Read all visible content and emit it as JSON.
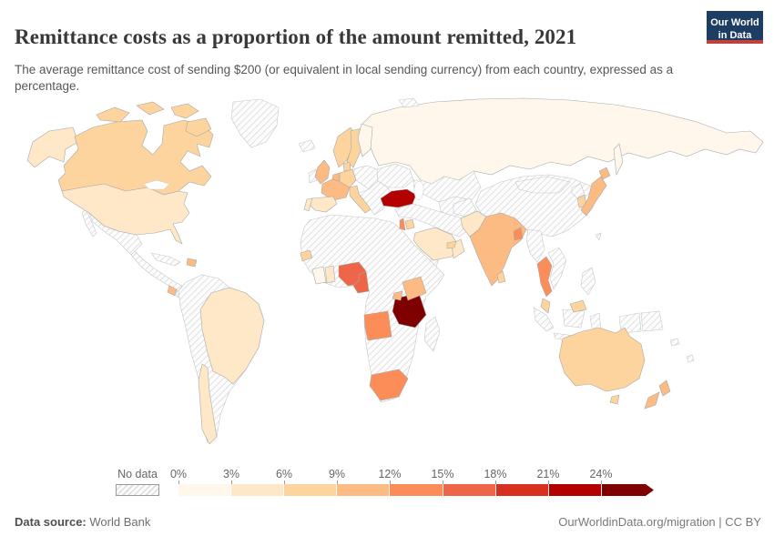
{
  "header": {
    "title": "Remittance costs as a proportion of the amount remitted, 2021",
    "subtitle": "The average remittance cost of sending $200 (or equivalent in local sending currency) from each country, expressed as a percentage.",
    "logo": {
      "line1": "Our World",
      "line2": "in Data",
      "bg_color": "#1d3d63",
      "accent_color": "#c0423e"
    }
  },
  "footer": {
    "source_label": "Data source:",
    "source_value": "World Bank",
    "attribution": "OurWorldinData.org/migration | CC BY"
  },
  "chart_data": {
    "type": "choropleth",
    "title": "Remittance costs as a proportion of the amount remitted, 2021",
    "unit": "share of amount remitted (%)",
    "year": "2021",
    "legend": {
      "no_data_label": "No data",
      "tick_labels": [
        "0%",
        "3%",
        "6%",
        "9%",
        "12%",
        "15%",
        "18%",
        "21%",
        "24%"
      ],
      "bin_colors": [
        "#fff7ec",
        "#fee8c8",
        "#fdd49e",
        "#fdbb84",
        "#fc8d59",
        "#ef6548",
        "#d7301f",
        "#b30000",
        "#7f0000"
      ],
      "bin_size_percent": 3,
      "open_ended_upper_arrow": true
    },
    "countries": {
      "russia": {
        "label": "Russia",
        "band": "0–3%",
        "color": "#fff7ec"
      },
      "finland": {
        "label": "Finland",
        "band": "0–3%",
        "color": "#fff7ec"
      },
      "cote-divoire": {
        "label": "Cote d'Ivoire",
        "band": "0–3%",
        "color": "#fff7ec"
      },
      "united-states": {
        "label": "United States",
        "band": "3–6%",
        "color": "#fee8c8"
      },
      "brazil": {
        "label": "Brazil",
        "band": "3–6%",
        "color": "#fee8c8"
      },
      "chile": {
        "label": "Chile",
        "band": "3–6%",
        "color": "#fee8c8"
      },
      "spain": {
        "label": "Spain",
        "band": "3–6%",
        "color": "#fee8c8"
      },
      "portugal": {
        "label": "Portugal",
        "band": "3–6%",
        "color": "#fee8c8"
      },
      "saudi-arabia": {
        "label": "Saudi Arabia",
        "band": "3–6%",
        "color": "#fee8c8"
      },
      "oman": {
        "label": "Oman",
        "band": "3–6%",
        "color": "#fee8c8"
      },
      "pakistan": {
        "label": "Pakistan",
        "band": "3–6%",
        "color": "#fee8c8"
      },
      "ghana": {
        "label": "Ghana",
        "band": "3–6%",
        "color": "#fee8c8"
      },
      "canada": {
        "label": "Canada",
        "band": "6–9%",
        "color": "#fdd49e"
      },
      "norway": {
        "label": "Norway",
        "band": "6–9%",
        "color": "#fdd49e"
      },
      "sweden": {
        "label": "Sweden",
        "band": "6–9%",
        "color": "#fdd49e"
      },
      "denmark": {
        "label": "Denmark",
        "band": "6–9%",
        "color": "#fdd49e"
      },
      "germany": {
        "label": "Germany",
        "band": "6–9%",
        "color": "#fdd49e"
      },
      "italy": {
        "label": "Italy",
        "band": "6–9%",
        "color": "#fdd49e"
      },
      "jordan": {
        "label": "Jordan",
        "band": "6–9%",
        "color": "#fdd49e"
      },
      "uae": {
        "label": "United Arab Emirates",
        "band": "6–9%",
        "color": "#fdd49e"
      },
      "senegal": {
        "label": "Senegal",
        "band": "6–9%",
        "color": "#fdd49e"
      },
      "sri-lanka": {
        "label": "Sri Lanka",
        "band": "6–9%",
        "color": "#fdd49e"
      },
      "south-korea": {
        "label": "South Korea",
        "band": "6–9%",
        "color": "#fdd49e"
      },
      "malaysia": {
        "label": "Malaysia",
        "band": "6–9%",
        "color": "#fdd49e"
      },
      "australia": {
        "label": "Australia",
        "band": "6–9%",
        "color": "#fdd49e"
      },
      "united-kingdom": {
        "label": "United Kingdom",
        "band": "9–12%",
        "color": "#fdbb84"
      },
      "france": {
        "label": "France",
        "band": "9–12%",
        "color": "#fdbb84"
      },
      "netherlands": {
        "label": "Netherlands",
        "band": "9–12%",
        "color": "#fdbb84"
      },
      "costa-rica": {
        "label": "Costa Rica",
        "band": "9–12%",
        "color": "#fdbb84"
      },
      "dominican-republic": {
        "label": "Dominican Republic",
        "band": "9–12%",
        "color": "#fdbb84"
      },
      "india": {
        "label": "India",
        "band": "9–12%",
        "color": "#fdbb84"
      },
      "japan": {
        "label": "Japan",
        "band": "9–12%",
        "color": "#fdbb84"
      },
      "kenya": {
        "label": "Kenya",
        "band": "9–12%",
        "color": "#fdbb84"
      },
      "uganda": {
        "label": "Uganda",
        "band": "9–12%",
        "color": "#fdbb84"
      },
      "new-zealand": {
        "label": "New Zealand",
        "band": "9–12%",
        "color": "#fdbb84"
      },
      "thailand": {
        "label": "Thailand",
        "band": "12–15%",
        "color": "#fc8d59"
      },
      "israel": {
        "label": "Israel",
        "band": "12–15%",
        "color": "#fc8d59"
      },
      "bangladesh": {
        "label": "Bangladesh",
        "band": "12–15%",
        "color": "#fc8d59"
      },
      "angola": {
        "label": "Angola",
        "band": "12–15%",
        "color": "#fc8d59"
      },
      "south-africa": {
        "label": "South Africa",
        "band": "12–15%",
        "color": "#fc8d59"
      },
      "nigeria": {
        "label": "Nigeria",
        "band": "15–18%",
        "color": "#ef6548"
      },
      "cameroon": {
        "label": "Cameroon",
        "band": "15–18%",
        "color": "#ef6548"
      },
      "turkey": {
        "label": "Turkey",
        "band": "21–24%",
        "color": "#b30000"
      },
      "tanzania": {
        "label": "Tanzania",
        "band": "≥24%",
        "color": "#7f0000"
      }
    },
    "no_data_regions": [
      "Greenland",
      "Iceland",
      "Ireland",
      "Mexico",
      "Central America",
      "Cuba",
      "Panama",
      "most of South America",
      "Central & Eastern Europe",
      "Balkans & Greece",
      "Caucasus",
      "Kazakhstan & Central Asia",
      "Iran & Middle East",
      "Afghanistan",
      "Yemen",
      "most of Africa",
      "Madagascar",
      "China",
      "Mongolia",
      "North Korea",
      "Nepal",
      "Myanmar",
      "Indochina",
      "Philippines",
      "Taiwan",
      "Indonesia",
      "Papua New Guinea",
      "Pacific islands",
      "Svalbard"
    ]
  }
}
